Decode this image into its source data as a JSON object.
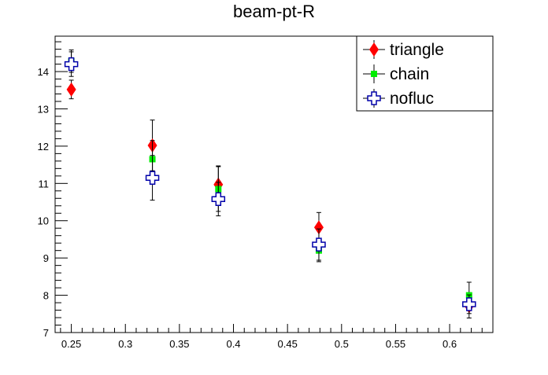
{
  "chart_data": {
    "type": "scatter",
    "title": "beam-pt-R",
    "xlabel": "",
    "ylabel": "",
    "xlim": [
      0.235,
      0.64
    ],
    "ylim": [
      7,
      14.95
    ],
    "x_ticks": [
      "0.25",
      "0.3",
      "0.35",
      "0.4",
      "0.45",
      "0.5",
      "0.55",
      "0.6"
    ],
    "y_ticks": [
      "7",
      "8",
      "9",
      "10",
      "11",
      "12",
      "13",
      "14"
    ],
    "grid": false,
    "legend_position": "top-right",
    "series": [
      {
        "name": "triangle",
        "marker": "diamond",
        "color": "#ff0000",
        "points": [
          {
            "x": 0.25,
            "y": 13.52,
            "err": 0.25
          },
          {
            "x": 0.325,
            "y": 12.02,
            "err": 0.68
          },
          {
            "x": 0.386,
            "y": 10.97,
            "err": 0.5
          },
          {
            "x": 0.479,
            "y": 9.82,
            "err": 0.4
          },
          {
            "x": 0.618,
            "y": 7.71,
            "err": 0.32
          }
        ]
      },
      {
        "name": "chain",
        "marker": "square",
        "color": "#00ee00",
        "points": [
          {
            "x": 0.25,
            "y": 14.28,
            "err": 0.3
          },
          {
            "x": 0.325,
            "y": 11.65,
            "err": 0.5
          },
          {
            "x": 0.386,
            "y": 10.85,
            "err": 0.6
          },
          {
            "x": 0.479,
            "y": 9.2,
            "err": 0.3
          },
          {
            "x": 0.618,
            "y": 8.0,
            "err": 0.35
          }
        ]
      },
      {
        "name": "nofluc",
        "marker": "open-cross",
        "color": "#0000aa",
        "points": [
          {
            "x": 0.25,
            "y": 14.2,
            "err": 0.33
          },
          {
            "x": 0.325,
            "y": 11.15,
            "err": 0.6
          },
          {
            "x": 0.386,
            "y": 10.58,
            "err": 0.45
          },
          {
            "x": 0.479,
            "y": 9.36,
            "err": 0.42
          },
          {
            "x": 0.618,
            "y": 7.76,
            "err": 0.25
          }
        ]
      }
    ]
  }
}
